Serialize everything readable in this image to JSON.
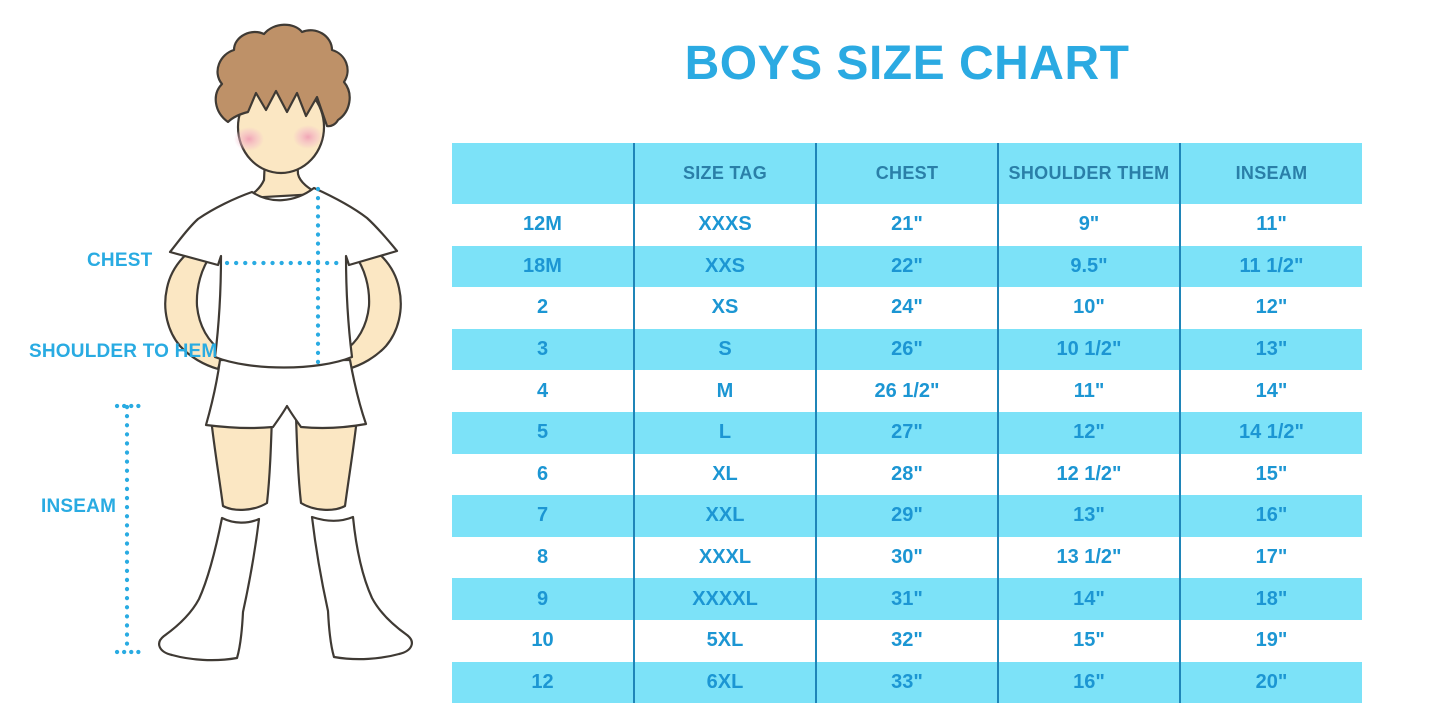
{
  "title": "BOYS SIZE CHART",
  "figure": {
    "labels": {
      "chest": "CHEST",
      "shoulder_to_hem": "SHOULDER TO HEM",
      "inseam": "INSEAM"
    }
  },
  "table": {
    "headers": [
      "",
      "SIZE TAG",
      "CHEST",
      "SHOULDER THEM",
      "INSEAM"
    ],
    "rows": [
      [
        "12M",
        "XXXS",
        "21\"",
        "9\"",
        "11\""
      ],
      [
        "18M",
        "XXS",
        "22\"",
        "9.5\"",
        "11 1/2\""
      ],
      [
        "2",
        "XS",
        "24\"",
        "10\"",
        "12\""
      ],
      [
        "3",
        "S",
        "26\"",
        "10 1/2\"",
        "13\""
      ],
      [
        "4",
        "M",
        "26 1/2\"",
        "11\"",
        "14\""
      ],
      [
        "5",
        "L",
        "27\"",
        "12\"",
        "14 1/2\""
      ],
      [
        "6",
        "XL",
        "28\"",
        "12 1/2\"",
        "15\""
      ],
      [
        "7",
        "XXL",
        "29\"",
        "13\"",
        "16\""
      ],
      [
        "8",
        "XXXL",
        "30\"",
        "13 1/2\"",
        "17\""
      ],
      [
        "9",
        "XXXXL",
        "31\"",
        "14\"",
        "18\""
      ],
      [
        "10",
        "5XL",
        "32\"",
        "15\"",
        "19\""
      ],
      [
        "12",
        "6XL",
        "33\"",
        "16\"",
        "20\""
      ]
    ]
  },
  "colors": {
    "accent_blue": "#29ABE2",
    "table_stripe": "#7CE2F8",
    "header_text": "#2A7FA8",
    "cell_text": "#1C96D3",
    "column_divider": "#1F85B8",
    "skin": "#FBE7C3",
    "hair": "#BE9168"
  }
}
